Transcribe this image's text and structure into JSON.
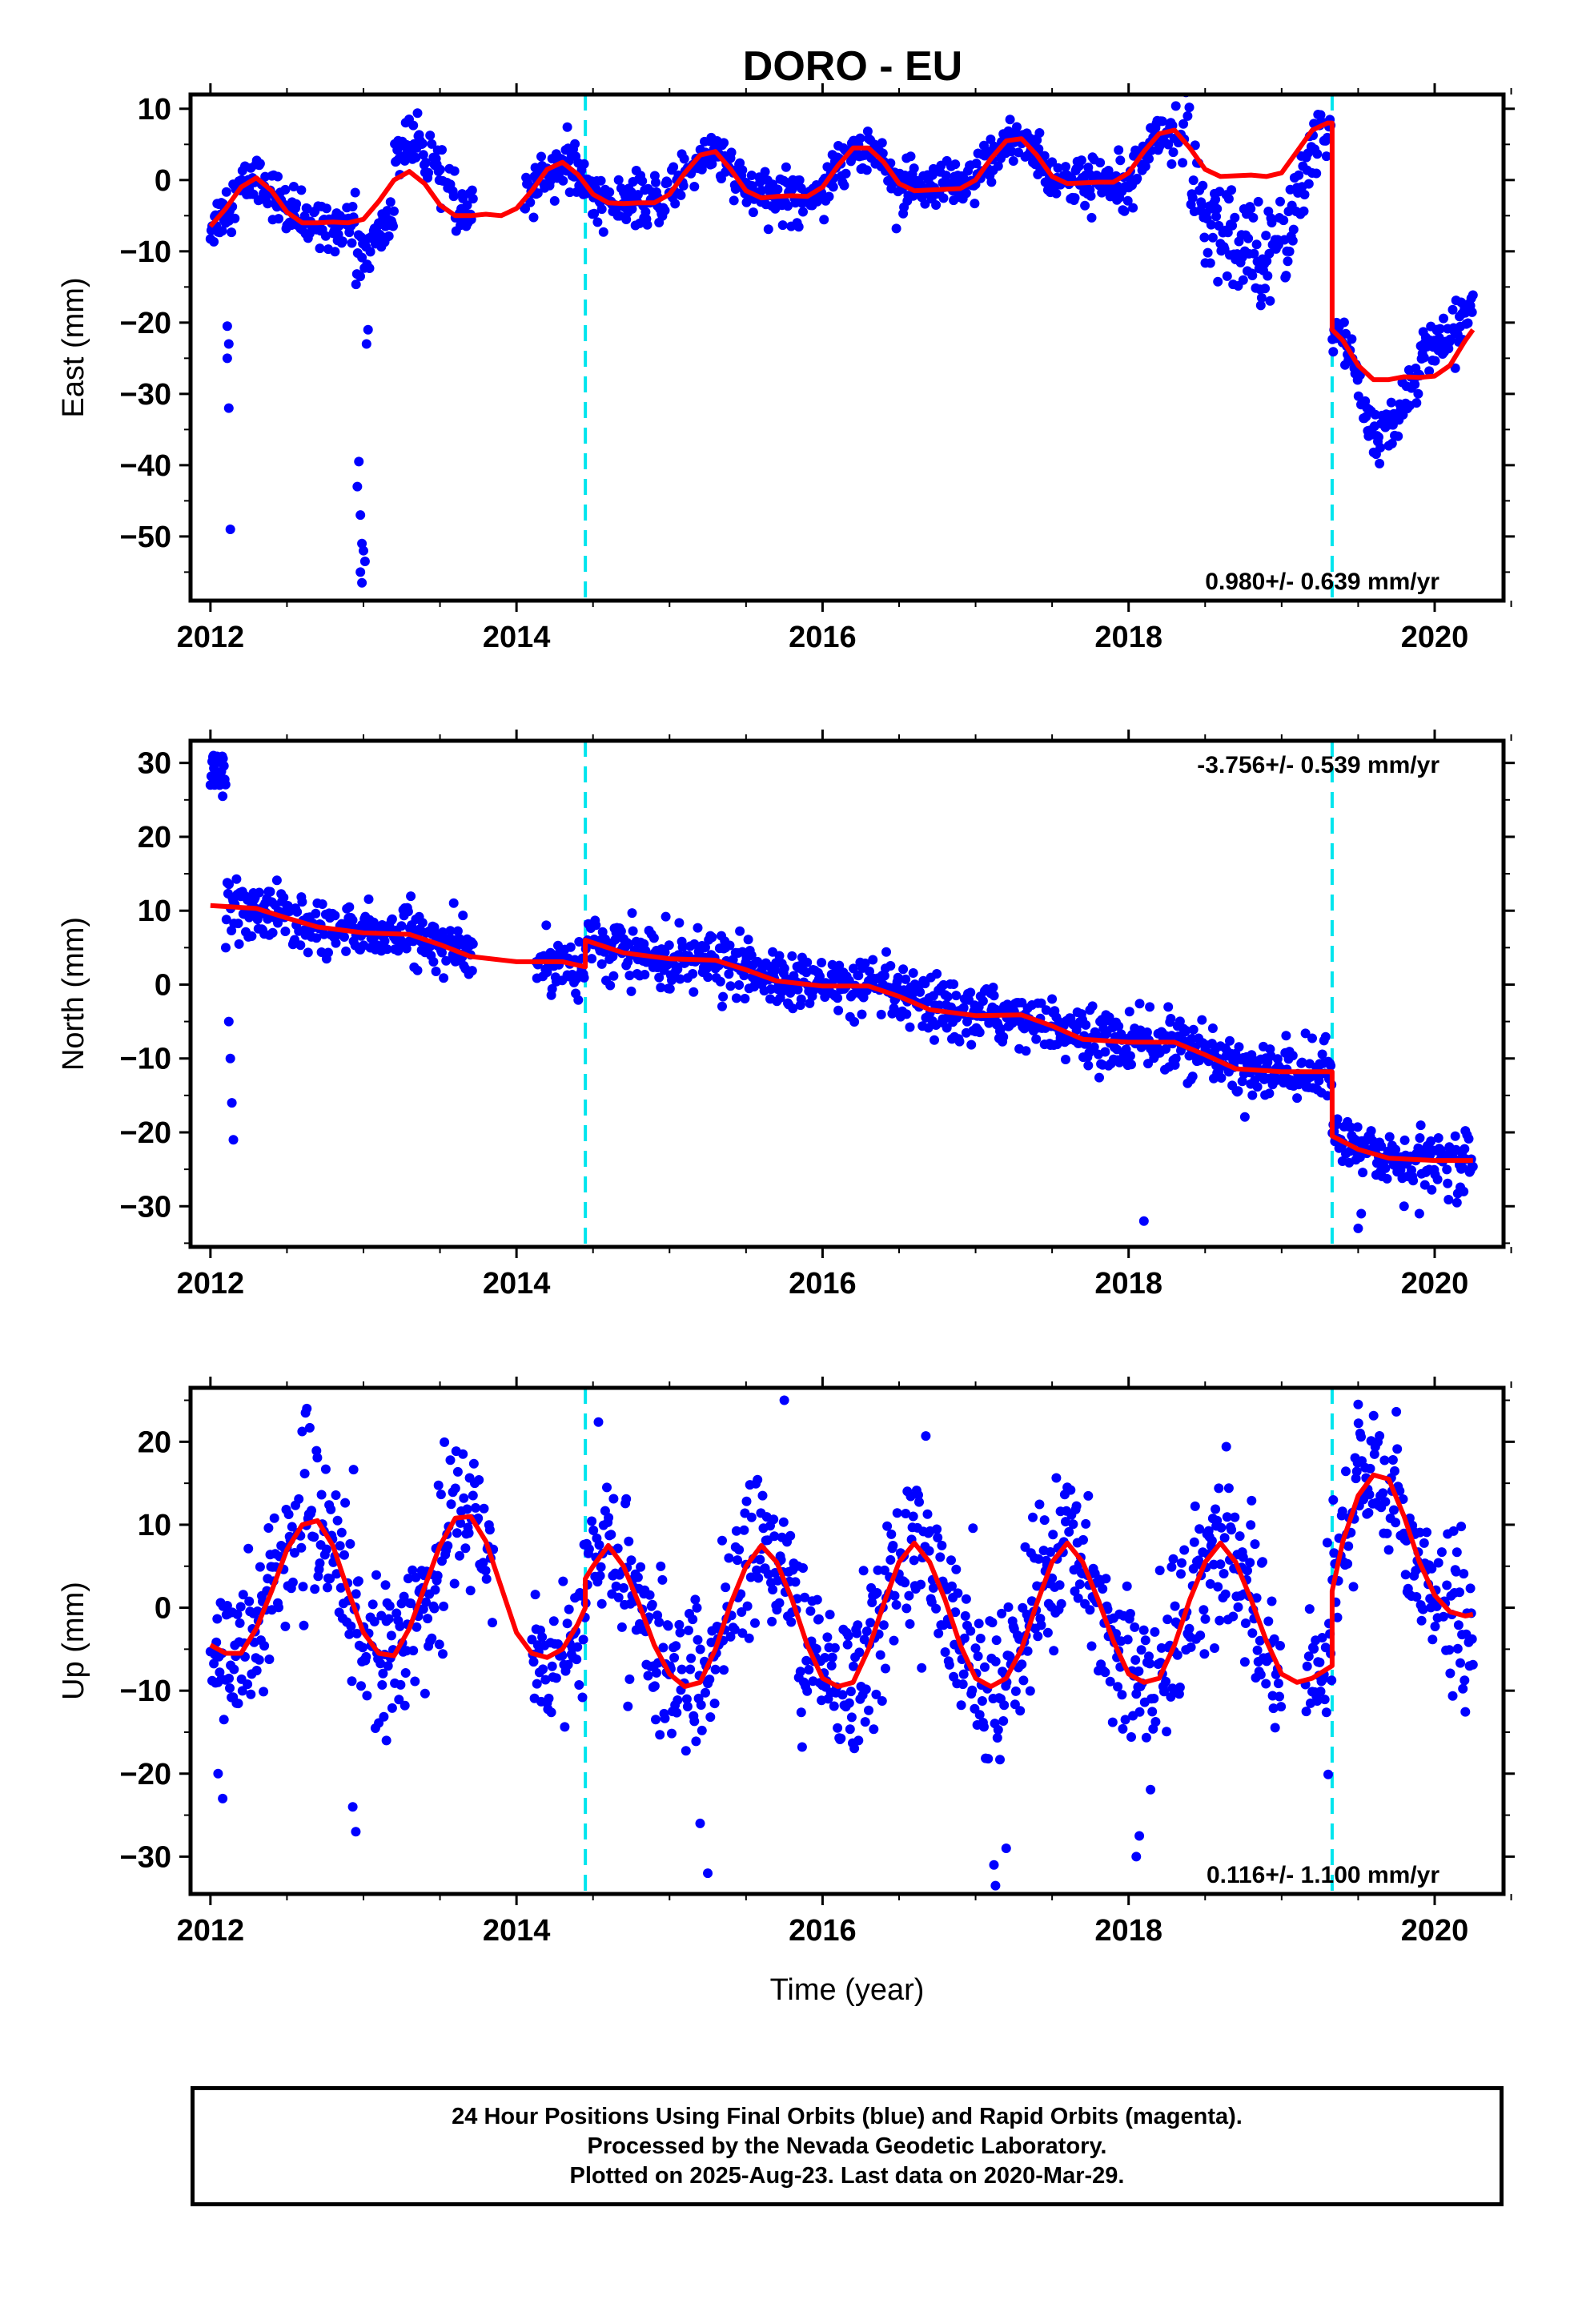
{
  "title": "DORO - EU",
  "footer": {
    "line1": "24 Hour Positions Using Final Orbits (blue) and Rapid Orbits (magenta).",
    "line2": "Processed by the Nevada Geodetic Laboratory.",
    "line3": "Plotted on 2025-Aug-23. Last data on 2020-Mar-29."
  },
  "colors": {
    "data": "#0000ff",
    "model": "#ff0000",
    "breaks": "#00e5ee",
    "frame": "#000000"
  },
  "chart_data": [
    {
      "type": "scatter",
      "name": "east",
      "ylabel": "East (mm)",
      "xlim": [
        2011.87,
        2020.45
      ],
      "ylim": [
        -59,
        12
      ],
      "xticks": [
        2012,
        2014,
        2016,
        2018,
        2020
      ],
      "xtick_labels": [
        "2012",
        "2014",
        "2016",
        "2018",
        "2020"
      ],
      "yticks": [
        10,
        0,
        -10,
        -20,
        -30,
        -40,
        -50
      ],
      "ytick_labels": [
        "10",
        "0",
        "−10",
        "−20",
        "−30",
        "−40",
        "−50"
      ],
      "rate_text": "0.980+/- 0.639 mm/yr",
      "rate_position": "bottom-right",
      "breaks": [
        2014.45,
        2019.33
      ],
      "model": {
        "x": [
          2012.0,
          2012.1,
          2012.2,
          2012.3,
          2012.4,
          2012.5,
          2012.6,
          2012.7,
          2012.8,
          2012.9,
          2013.0,
          2013.1,
          2013.2,
          2013.3,
          2013.4,
          2013.5,
          2013.6,
          2013.7,
          2013.8,
          2013.9,
          2014.0,
          2014.1,
          2014.2,
          2014.3,
          2014.4,
          2014.5,
          2014.6,
          2014.7,
          2014.8,
          2014.9,
          2015.0,
          2015.1,
          2015.2,
          2015.3,
          2015.4,
          2015.5,
          2015.6,
          2015.7,
          2015.8,
          2015.9,
          2016.0,
          2016.1,
          2016.2,
          2016.3,
          2016.4,
          2016.5,
          2016.6,
          2016.7,
          2016.8,
          2016.9,
          2017.0,
          2017.1,
          2017.2,
          2017.3,
          2017.4,
          2017.5,
          2017.6,
          2017.7,
          2017.8,
          2017.9,
          2018.0,
          2018.1,
          2018.2,
          2018.3,
          2018.4,
          2018.5,
          2018.6,
          2018.7,
          2018.8,
          2018.9,
          2019.0,
          2019.1,
          2019.2,
          2019.3,
          2019.33,
          2019.33,
          2019.4,
          2019.5,
          2019.6,
          2019.7,
          2019.8,
          2019.9,
          2020.0,
          2020.1,
          2020.2,
          2020.25
        ],
        "y": [
          -6.5,
          -4.0,
          -1.0,
          0.3,
          -1.5,
          -4.5,
          -6.0,
          -6.0,
          -5.9,
          -6.0,
          -5.5,
          -3.0,
          0.0,
          1.2,
          -0.5,
          -3.5,
          -5.0,
          -5.0,
          -4.8,
          -5.0,
          -4.0,
          -1.5,
          1.5,
          2.5,
          0.8,
          -2.0,
          -3.2,
          -3.3,
          -3.2,
          -3.2,
          -2.0,
          1.0,
          3.5,
          4.0,
          1.5,
          -1.5,
          -2.5,
          -2.3,
          -2.2,
          -2.3,
          -1.0,
          2.0,
          4.5,
          4.5,
          2.5,
          -0.5,
          -1.5,
          -1.4,
          -1.3,
          -1.2,
          0.0,
          3.0,
          5.5,
          5.8,
          3.5,
          0.5,
          -0.5,
          -0.4,
          -0.3,
          -0.3,
          1.0,
          4.0,
          6.5,
          7.0,
          4.5,
          1.5,
          0.5,
          0.6,
          0.7,
          0.5,
          1.0,
          4.0,
          7.0,
          8.0,
          8.0,
          -21.0,
          -22.5,
          -26.0,
          -28.0,
          -28.0,
          -27.6,
          -27.7,
          -27.5,
          -26.0,
          -22.5,
          -21.0
        ]
      },
      "outliers": [
        [
          2012.13,
          -49.0
        ],
        [
          2012.12,
          -32.0
        ],
        [
          2012.11,
          -25.0
        ],
        [
          2012.12,
          -23.0
        ],
        [
          2012.11,
          -20.5
        ],
        [
          2012.97,
          -39.5
        ],
        [
          2012.96,
          -43.0
        ],
        [
          2012.98,
          -47.0
        ],
        [
          2012.99,
          -51.0
        ],
        [
          2013.0,
          -52.0
        ],
        [
          2013.01,
          -53.5
        ],
        [
          2012.98,
          -55.0
        ],
        [
          2012.99,
          -56.5
        ],
        [
          2013.02,
          -23.0
        ],
        [
          2013.03,
          -21.0
        ]
      ]
    },
    {
      "type": "scatter",
      "name": "north",
      "ylabel": "North (mm)",
      "xlim": [
        2011.87,
        2020.45
      ],
      "ylim": [
        -35.5,
        33
      ],
      "xticks": [
        2012,
        2014,
        2016,
        2018,
        2020
      ],
      "xtick_labels": [
        "2012",
        "2014",
        "2016",
        "2018",
        "2020"
      ],
      "yticks": [
        30,
        20,
        10,
        0,
        -10,
        -20,
        -30
      ],
      "ytick_labels": [
        "30",
        "20",
        "10",
        "0",
        "−10",
        "−20",
        "−30"
      ],
      "rate_text": "-3.756+/- 0.539 mm/yr",
      "rate_position": "top-right",
      "breaks": [
        2014.45,
        2019.33
      ],
      "model": {
        "x": [
          2012.0,
          2012.3,
          2012.5,
          2012.7,
          2013.0,
          2013.3,
          2013.5,
          2013.7,
          2014.0,
          2014.3,
          2014.45,
          2014.45,
          2014.7,
          2015.0,
          2015.3,
          2015.5,
          2015.7,
          2016.0,
          2016.3,
          2016.5,
          2016.7,
          2017.0,
          2017.3,
          2017.5,
          2017.7,
          2018.0,
          2018.3,
          2018.5,
          2018.7,
          2019.0,
          2019.33,
          2019.33,
          2019.5,
          2019.7,
          2020.0,
          2020.25
        ],
        "y": [
          10.7,
          10.3,
          9.0,
          7.8,
          7.0,
          6.8,
          5.4,
          3.8,
          3.1,
          3.1,
          2.4,
          6.0,
          4.3,
          3.5,
          3.3,
          2.0,
          0.5,
          -0.2,
          -0.2,
          -1.6,
          -3.4,
          -4.2,
          -4.1,
          -5.6,
          -7.4,
          -7.8,
          -7.8,
          -9.5,
          -11.4,
          -11.8,
          -11.8,
          -20.5,
          -22.3,
          -23.5,
          -23.8,
          -23.8
        ]
      },
      "outliers": [
        [
          2012.02,
          31.0
        ],
        [
          2012.04,
          30.0
        ],
        [
          2012.05,
          28.5
        ],
        [
          2012.06,
          27.0
        ],
        [
          2012.08,
          25.5
        ],
        [
          2012.1,
          5.0
        ],
        [
          2012.12,
          -5.0
        ],
        [
          2012.13,
          -10.0
        ],
        [
          2012.14,
          -16.0
        ],
        [
          2012.15,
          -21.0
        ],
        [
          2018.1,
          -32.0
        ],
        [
          2019.5,
          -33.0
        ],
        [
          2019.52,
          -31.0
        ],
        [
          2019.8,
          -30.0
        ],
        [
          2019.9,
          -31.0
        ]
      ]
    },
    {
      "type": "scatter",
      "name": "up",
      "ylabel": "Up (mm)",
      "xlabel": "Time (year)",
      "xlim": [
        2011.87,
        2020.45
      ],
      "ylim": [
        -34.5,
        26.5
      ],
      "xticks": [
        2012,
        2014,
        2016,
        2018,
        2020
      ],
      "xtick_labels": [
        "2012",
        "2014",
        "2016",
        "2018",
        "2020"
      ],
      "yticks": [
        20,
        10,
        0,
        -10,
        -20,
        -30
      ],
      "ytick_labels": [
        "20",
        "10",
        "0",
        "−10",
        "−20",
        "−30"
      ],
      "rate_text": "0.116+/- 1.100 mm/yr",
      "rate_position": "bottom-right",
      "breaks": [
        2014.45,
        2019.33
      ],
      "model": {
        "x": [
          2012.0,
          2012.1,
          2012.2,
          2012.3,
          2012.4,
          2012.5,
          2012.6,
          2012.7,
          2012.8,
          2012.9,
          2013.0,
          2013.1,
          2013.2,
          2013.3,
          2013.4,
          2013.5,
          2013.6,
          2013.7,
          2013.8,
          2013.9,
          2014.0,
          2014.1,
          2014.2,
          2014.3,
          2014.4,
          2014.45,
          2014.45,
          2014.5,
          2014.6,
          2014.7,
          2014.8,
          2014.9,
          2015.0,
          2015.1,
          2015.2,
          2015.3,
          2015.4,
          2015.5,
          2015.6,
          2015.7,
          2015.8,
          2015.9,
          2016.0,
          2016.1,
          2016.2,
          2016.3,
          2016.4,
          2016.5,
          2016.6,
          2016.7,
          2016.8,
          2016.9,
          2017.0,
          2017.1,
          2017.2,
          2017.3,
          2017.4,
          2017.5,
          2017.6,
          2017.7,
          2017.8,
          2017.9,
          2018.0,
          2018.1,
          2018.2,
          2018.3,
          2018.4,
          2018.5,
          2018.6,
          2018.7,
          2018.8,
          2018.9,
          2019.0,
          2019.1,
          2019.2,
          2019.33,
          2019.33,
          2019.4,
          2019.5,
          2019.6,
          2019.7,
          2019.8,
          2019.9,
          2020.0,
          2020.1,
          2020.2,
          2020.25
        ],
        "y": [
          -4.5,
          -5.5,
          -5.5,
          -2.5,
          2.0,
          7.0,
          10.0,
          10.5,
          7.5,
          2.0,
          -3.0,
          -5.5,
          -5.8,
          -2.5,
          2.5,
          7.5,
          10.8,
          11.0,
          8.0,
          2.5,
          -3.0,
          -5.5,
          -6.0,
          -5.0,
          -2.0,
          0.0,
          3.5,
          5.0,
          7.5,
          5.0,
          0.5,
          -4.5,
          -8.0,
          -9.5,
          -9.0,
          -5.0,
          0.5,
          5.0,
          7.5,
          5.5,
          1.0,
          -4.5,
          -8.5,
          -9.5,
          -9.0,
          -5.0,
          0.5,
          5.5,
          7.8,
          5.5,
          1.0,
          -4.5,
          -8.5,
          -9.5,
          -8.5,
          -5.0,
          0.5,
          5.5,
          7.8,
          5.5,
          1.0,
          -4.0,
          -8.0,
          -9.0,
          -8.5,
          -4.5,
          1.0,
          5.5,
          7.8,
          5.5,
          1.0,
          -4.0,
          -8.0,
          -9.0,
          -8.5,
          -7.0,
          2.0,
          8.0,
          13.5,
          16.0,
          15.5,
          11.0,
          5.5,
          1.5,
          -0.5,
          -1.0,
          -0.8
        ]
      },
      "outliers": [
        [
          2012.05,
          -20.0
        ],
        [
          2012.08,
          -23.0
        ],
        [
          2012.95,
          -27.0
        ],
        [
          2012.93,
          -24.0
        ],
        [
          2013.15,
          -16.0
        ],
        [
          2015.2,
          -26.0
        ],
        [
          2015.25,
          -32.0
        ],
        [
          2017.12,
          -31.0
        ],
        [
          2017.13,
          -33.5
        ],
        [
          2017.2,
          -29.0
        ],
        [
          2018.05,
          -30.0
        ],
        [
          2018.07,
          -27.5
        ],
        [
          2012.63,
          24.0
        ],
        [
          2015.75,
          25.0
        ],
        [
          2019.5,
          24.5
        ]
      ]
    }
  ]
}
